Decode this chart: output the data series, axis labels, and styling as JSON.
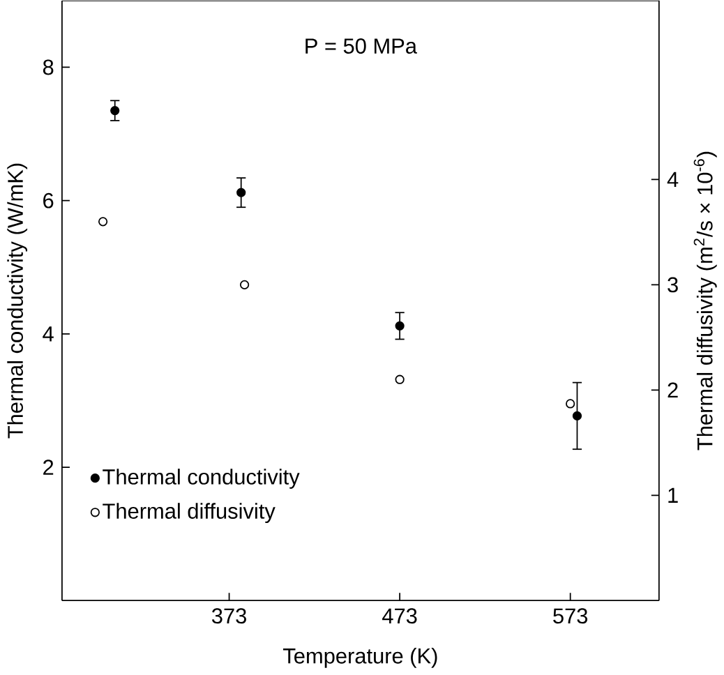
{
  "chart_data": {
    "type": "scatter",
    "xlabel": "Temperature (K)",
    "ylabel": "Thermal conductivity (W/mK)",
    "y2label": "Thermal diffusivity (m$^{2}$/s × 10$^{-6}$)",
    "annotations": [
      "P = 50 MPa"
    ],
    "xlim": [
      275,
      625
    ],
    "xticks": [
      373,
      473,
      573
    ],
    "ylim": [
      0,
      9
    ],
    "yticks": [
      2,
      4,
      6,
      8
    ],
    "y2lim": [
      0,
      5.7
    ],
    "y2ticks": [
      1,
      2,
      3,
      4
    ],
    "marker": "circle",
    "legend": "bottom left",
    "grid": false,
    "series": [
      {
        "name": "Thermal conductivity",
        "color": "#000000",
        "x": [
          306,
          380,
          473,
          577
        ],
        "values": [
          7.35,
          6.12,
          4.12,
          2.77
        ],
        "errors": [
          0.15,
          0.22,
          0.2,
          0.5
        ]
      },
      {
        "name": "Thermal diffusivity",
        "color": "#000000",
        "axis": "y2",
        "x": [
          299,
          382,
          473,
          573
        ],
        "values": [
          3.6,
          3.0,
          2.1,
          1.87
        ]
      }
    ]
  }
}
